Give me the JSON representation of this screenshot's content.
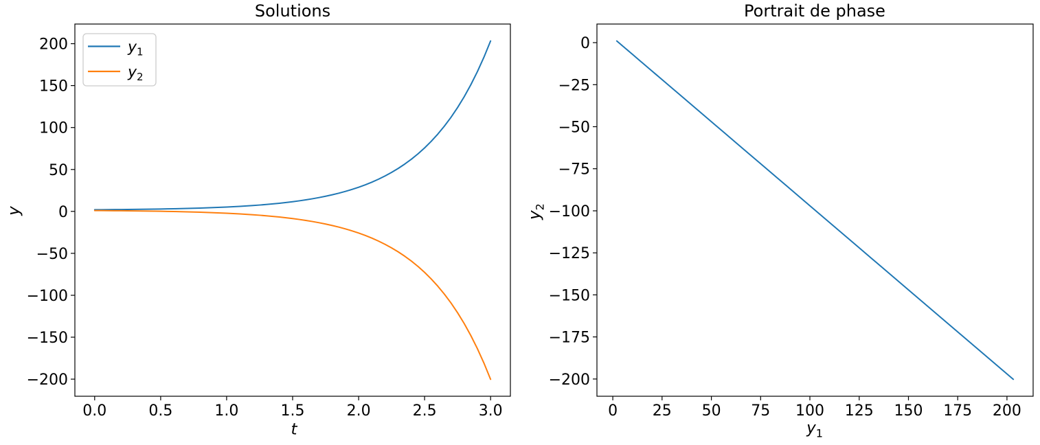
{
  "figure": {
    "background": "#ffffff",
    "axis_color": "#000000",
    "legend_border_color": "#cccccc"
  },
  "chart_data": [
    {
      "type": "line",
      "title": "Solutions",
      "xlabel": "t",
      "ylabel": "y",
      "xlim": [
        -0.15,
        3.15
      ],
      "ylim": [
        -220.39,
        223.39
      ],
      "grid": false,
      "xticks": [
        0.0,
        0.5,
        1.0,
        1.5,
        2.0,
        2.5,
        3.0
      ],
      "xtick_labels": [
        "0.0",
        "0.5",
        "1.0",
        "1.5",
        "2.0",
        "2.5",
        "3.0"
      ],
      "yticks": [
        200,
        150,
        100,
        50,
        0,
        -50,
        -100,
        -150,
        -200
      ],
      "ytick_labels": [
        "200",
        "150",
        "100",
        "50",
        "0",
        "−50",
        "−100",
        "−150",
        "−200"
      ],
      "legend": {
        "position": "upper left",
        "entries": [
          {
            "name": "y1",
            "label_base": "y",
            "label_sub": "1",
            "color": "#1f77b4"
          },
          {
            "name": "y2",
            "label_base": "y",
            "label_sub": "2",
            "color": "#ff7f0e"
          }
        ]
      },
      "x": [
        0,
        0.05,
        0.1,
        0.15,
        0.2,
        0.25,
        0.3,
        0.35,
        0.4,
        0.45,
        0.5,
        0.55,
        0.6,
        0.65,
        0.7,
        0.75,
        0.8,
        0.85,
        0.9,
        0.95,
        1,
        1.05,
        1.1,
        1.15,
        1.2,
        1.25,
        1.3,
        1.35,
        1.4,
        1.45,
        1.5,
        1.55,
        1.6,
        1.65,
        1.7,
        1.75,
        1.8,
        1.85,
        1.9,
        1.95,
        2,
        2.05,
        2.1,
        2.15,
        2.2,
        2.25,
        2.3,
        2.35,
        2.4,
        2.45,
        2.5,
        2.55,
        2.6,
        2.65,
        2.7,
        2.75,
        2.8,
        2.85,
        2.9,
        2.95,
        3
      ],
      "series": [
        {
          "name": "y1",
          "color": "#1f77b4",
          "values": [
            2,
            2.05,
            2.11,
            2.17,
            2.25,
            2.32,
            2.41,
            2.51,
            2.61,
            2.73,
            2.86,
            3,
            3.16,
            3.33,
            3.53,
            3.74,
            3.98,
            4.24,
            4.52,
            4.84,
            5.19,
            5.58,
            6.01,
            6.49,
            7.01,
            7.59,
            8.23,
            8.94,
            9.72,
            10.59,
            11.54,
            12.6,
            13.77,
            15.06,
            16.48,
            18.06,
            19.8,
            21.72,
            23.85,
            26.2,
            28.8,
            31.67,
            34.84,
            38.35,
            42.23,
            46.51,
            51.24,
            56.47,
            62.26,
            68.64,
            75.71,
            83.51,
            92.14,
            101.67,
            112.2,
            123.85,
            136.71,
            150.93,
            166.65,
            184.02,
            203.21
          ]
        },
        {
          "name": "y2",
          "color": "#ff7f0e",
          "values": [
            1,
            0.95,
            0.89,
            0.83,
            0.75,
            0.68,
            0.59,
            0.49,
            0.39,
            0.27,
            0.14,
            0,
            -0.16,
            -0.33,
            -0.53,
            -0.74,
            -0.98,
            -1.24,
            -1.52,
            -1.84,
            -2.19,
            -2.58,
            -3.01,
            -3.49,
            -4.01,
            -4.59,
            -5.23,
            -5.94,
            -6.72,
            -7.59,
            -8.54,
            -9.6,
            -10.77,
            -12.06,
            -13.48,
            -15.06,
            -16.8,
            -18.72,
            -20.85,
            -23.2,
            -25.8,
            -28.67,
            -31.84,
            -35.35,
            -39.23,
            -43.51,
            -48.24,
            -53.47,
            -59.26,
            -65.64,
            -72.71,
            -80.51,
            -89.14,
            -98.67,
            -109.2,
            -120.85,
            -133.71,
            -147.93,
            -163.65,
            -181.02,
            -200.21
          ]
        }
      ]
    },
    {
      "type": "line",
      "title": "Portrait de phase",
      "xlabel_base": "y",
      "xlabel_sub": "1",
      "ylabel_base": "y",
      "ylabel_sub": "2",
      "xlim": [
        -8.06,
        213.27
      ],
      "ylim": [
        -210.27,
        11.06
      ],
      "grid": false,
      "xticks": [
        0,
        25,
        50,
        75,
        100,
        125,
        150,
        175,
        200
      ],
      "xtick_labels": [
        "0",
        "25",
        "50",
        "75",
        "100",
        "125",
        "150",
        "175",
        "200"
      ],
      "yticks": [
        0,
        -25,
        -50,
        -75,
        -100,
        -125,
        -150,
        -175,
        -200
      ],
      "ytick_labels": [
        "0",
        "−25",
        "−50",
        "−75",
        "−100",
        "−125",
        "−150",
        "−175",
        "−200"
      ],
      "series": [
        {
          "name": "trajectory",
          "color": "#1f77b4",
          "x": [
            2,
            2.05,
            2.11,
            2.17,
            2.25,
            2.32,
            2.41,
            2.51,
            2.61,
            2.73,
            2.86,
            3,
            3.16,
            3.33,
            3.53,
            3.74,
            3.98,
            4.24,
            4.52,
            4.84,
            5.19,
            5.58,
            6.01,
            6.49,
            7.01,
            7.59,
            8.23,
            8.94,
            9.72,
            10.59,
            11.54,
            12.6,
            13.77,
            15.06,
            16.48,
            18.06,
            19.8,
            21.72,
            23.85,
            26.2,
            28.8,
            31.67,
            34.84,
            38.35,
            42.23,
            46.51,
            51.24,
            56.47,
            62.26,
            68.64,
            75.71,
            83.51,
            92.14,
            101.67,
            112.2,
            123.85,
            136.71,
            150.93,
            166.65,
            184.02,
            203.21
          ],
          "y": [
            1,
            0.95,
            0.89,
            0.83,
            0.75,
            0.68,
            0.59,
            0.49,
            0.39,
            0.27,
            0.14,
            0,
            -0.16,
            -0.33,
            -0.53,
            -0.74,
            -0.98,
            -1.24,
            -1.52,
            -1.84,
            -2.19,
            -2.58,
            -3.01,
            -3.49,
            -4.01,
            -4.59,
            -5.23,
            -5.94,
            -6.72,
            -7.59,
            -8.54,
            -9.6,
            -10.77,
            -12.06,
            -13.48,
            -15.06,
            -16.8,
            -18.72,
            -20.85,
            -23.2,
            -25.8,
            -28.67,
            -31.84,
            -35.35,
            -39.23,
            -43.51,
            -48.24,
            -53.47,
            -59.26,
            -65.64,
            -72.71,
            -80.51,
            -89.14,
            -98.67,
            -109.2,
            -120.85,
            -133.71,
            -147.93,
            -163.65,
            -181.02,
            -200.21
          ]
        }
      ]
    }
  ]
}
